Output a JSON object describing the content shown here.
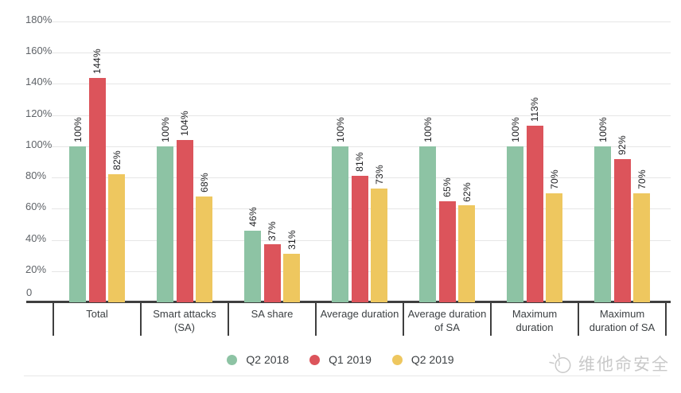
{
  "watermark": {
    "text": "维他命安全",
    "icon": "megaphone-icon"
  },
  "chart_data": {
    "type": "bar",
    "title": "",
    "categories": [
      "Total",
      "Smart attacks (SA)",
      "SA share",
      "Average duration",
      "Average duration of SA",
      "Maximum duration",
      "Maximum duration of SA"
    ],
    "category_label_lines": [
      [
        "Total"
      ],
      [
        "Smart attacks",
        "(SA)"
      ],
      [
        "SA share"
      ],
      [
        "Average duration"
      ],
      [
        "Average duration",
        "of SA"
      ],
      [
        "Maximum",
        "duration"
      ],
      [
        "Maximum",
        "duration of SA"
      ]
    ],
    "series": [
      {
        "name": "Q2 2018",
        "color": "#8dc3a4",
        "values": [
          100,
          100,
          46,
          100,
          100,
          100,
          100
        ]
      },
      {
        "name": "Q1 2019",
        "color": "#dc545b",
        "values": [
          144,
          104,
          37,
          81,
          65,
          113,
          92
        ]
      },
      {
        "name": "Q2 2019",
        "color": "#eec75f",
        "values": [
          82,
          68,
          31,
          73,
          62,
          70,
          70
        ]
      }
    ],
    "value_label_suffix": "%",
    "y_axis": {
      "min": 0,
      "max": 180,
      "step": 20,
      "tick_suffix": "%",
      "zero_tick_label": "0"
    },
    "ylim": [
      0,
      180
    ],
    "grid": true,
    "legend_position": "bottom",
    "colors": {
      "axis_line": "#3f3f3f",
      "grid_line": "#e6e6e6",
      "tick_text": "#5f6368",
      "value_text": "#202124",
      "category_text": "#3c4043",
      "legend_text": "#3c4043",
      "separator": "#e8e8e8",
      "watermark": "#c9c9c9"
    }
  }
}
